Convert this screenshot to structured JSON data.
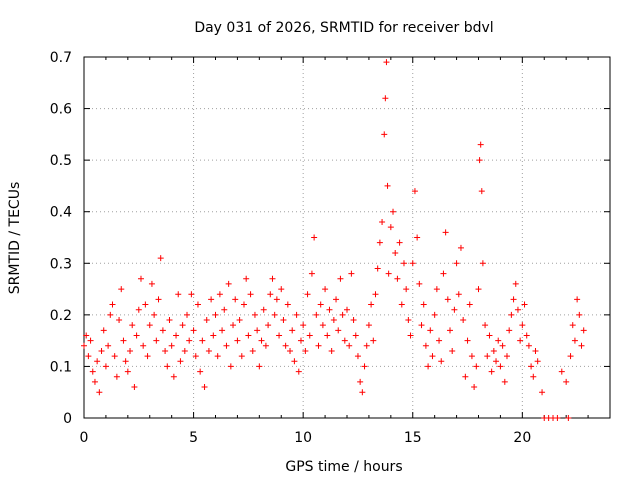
{
  "chart_data": {
    "type": "scatter",
    "title": "Day 031 of 2026, SRMTID for receiver bdvl",
    "xlabel": "GPS time / hours",
    "ylabel": "SRMTID / TECUs",
    "xlim": [
      0,
      24
    ],
    "ylim": [
      0,
      0.7
    ],
    "xticks": [
      0,
      5,
      10,
      15,
      20
    ],
    "xtick_labels": [
      "0",
      "5",
      "10",
      "15",
      "20"
    ],
    "yticks": [
      0,
      0.1,
      0.2,
      0.3,
      0.4,
      0.5,
      0.6,
      0.7
    ],
    "ytick_labels": [
      "0",
      "0.1",
      "0.2",
      "0.3",
      "0.4",
      "0.5",
      "0.6",
      "0.7"
    ],
    "grid": true,
    "marker": "plus",
    "color": "#ff0000",
    "series": [
      {
        "name": "SRMTID",
        "points": [
          [
            0.0,
            0.14
          ],
          [
            0.1,
            0.16
          ],
          [
            0.2,
            0.12
          ],
          [
            0.3,
            0.15
          ],
          [
            0.4,
            0.09
          ],
          [
            0.5,
            0.07
          ],
          [
            0.6,
            0.11
          ],
          [
            0.7,
            0.05
          ],
          [
            0.8,
            0.13
          ],
          [
            0.9,
            0.17
          ],
          [
            1.0,
            0.1
          ],
          [
            1.1,
            0.14
          ],
          [
            1.2,
            0.2
          ],
          [
            1.3,
            0.22
          ],
          [
            1.4,
            0.12
          ],
          [
            1.5,
            0.08
          ],
          [
            1.6,
            0.19
          ],
          [
            1.7,
            0.25
          ],
          [
            1.8,
            0.15
          ],
          [
            1.9,
            0.11
          ],
          [
            2.0,
            0.09
          ],
          [
            2.1,
            0.13
          ],
          [
            2.2,
            0.18
          ],
          [
            2.3,
            0.06
          ],
          [
            2.4,
            0.16
          ],
          [
            2.5,
            0.21
          ],
          [
            2.6,
            0.27
          ],
          [
            2.7,
            0.14
          ],
          [
            2.8,
            0.22
          ],
          [
            2.9,
            0.12
          ],
          [
            3.0,
            0.18
          ],
          [
            3.1,
            0.26
          ],
          [
            3.2,
            0.2
          ],
          [
            3.3,
            0.15
          ],
          [
            3.4,
            0.23
          ],
          [
            3.5,
            0.31
          ],
          [
            3.6,
            0.17
          ],
          [
            3.7,
            0.13
          ],
          [
            3.8,
            0.1
          ],
          [
            3.9,
            0.19
          ],
          [
            4.0,
            0.14
          ],
          [
            4.1,
            0.08
          ],
          [
            4.2,
            0.16
          ],
          [
            4.3,
            0.24
          ],
          [
            4.4,
            0.11
          ],
          [
            4.5,
            0.18
          ],
          [
            4.6,
            0.13
          ],
          [
            4.7,
            0.2
          ],
          [
            4.8,
            0.15
          ],
          [
            4.9,
            0.24
          ],
          [
            5.0,
            0.17
          ],
          [
            5.1,
            0.12
          ],
          [
            5.2,
            0.22
          ],
          [
            5.3,
            0.09
          ],
          [
            5.4,
            0.15
          ],
          [
            5.5,
            0.06
          ],
          [
            5.6,
            0.19
          ],
          [
            5.7,
            0.13
          ],
          [
            5.8,
            0.23
          ],
          [
            5.9,
            0.16
          ],
          [
            6.0,
            0.2
          ],
          [
            6.1,
            0.12
          ],
          [
            6.2,
            0.24
          ],
          [
            6.3,
            0.17
          ],
          [
            6.4,
            0.21
          ],
          [
            6.5,
            0.14
          ],
          [
            6.6,
            0.26
          ],
          [
            6.7,
            0.1
          ],
          [
            6.8,
            0.18
          ],
          [
            6.9,
            0.23
          ],
          [
            7.0,
            0.15
          ],
          [
            7.1,
            0.19
          ],
          [
            7.2,
            0.12
          ],
          [
            7.3,
            0.22
          ],
          [
            7.4,
            0.27
          ],
          [
            7.5,
            0.16
          ],
          [
            7.6,
            0.24
          ],
          [
            7.7,
            0.13
          ],
          [
            7.8,
            0.2
          ],
          [
            7.9,
            0.17
          ],
          [
            8.0,
            0.1
          ],
          [
            8.1,
            0.15
          ],
          [
            8.2,
            0.21
          ],
          [
            8.3,
            0.14
          ],
          [
            8.4,
            0.18
          ],
          [
            8.5,
            0.24
          ],
          [
            8.6,
            0.27
          ],
          [
            8.7,
            0.2
          ],
          [
            8.8,
            0.23
          ],
          [
            8.9,
            0.16
          ],
          [
            9.0,
            0.25
          ],
          [
            9.1,
            0.19
          ],
          [
            9.2,
            0.14
          ],
          [
            9.3,
            0.22
          ],
          [
            9.4,
            0.13
          ],
          [
            9.5,
            0.17
          ],
          [
            9.6,
            0.11
          ],
          [
            9.7,
            0.2
          ],
          [
            9.8,
            0.09
          ],
          [
            9.9,
            0.15
          ],
          [
            10.0,
            0.18
          ],
          [
            10.1,
            0.13
          ],
          [
            10.2,
            0.24
          ],
          [
            10.3,
            0.16
          ],
          [
            10.4,
            0.28
          ],
          [
            10.5,
            0.35
          ],
          [
            10.6,
            0.2
          ],
          [
            10.7,
            0.14
          ],
          [
            10.8,
            0.22
          ],
          [
            10.9,
            0.18
          ],
          [
            11.0,
            0.25
          ],
          [
            11.1,
            0.16
          ],
          [
            11.2,
            0.21
          ],
          [
            11.3,
            0.13
          ],
          [
            11.4,
            0.19
          ],
          [
            11.5,
            0.23
          ],
          [
            11.6,
            0.17
          ],
          [
            11.7,
            0.27
          ],
          [
            11.8,
            0.2
          ],
          [
            11.9,
            0.15
          ],
          [
            12.0,
            0.21
          ],
          [
            12.1,
            0.14
          ],
          [
            12.2,
            0.28
          ],
          [
            12.3,
            0.19
          ],
          [
            12.4,
            0.16
          ],
          [
            12.5,
            0.12
          ],
          [
            12.6,
            0.07
          ],
          [
            12.7,
            0.05
          ],
          [
            12.8,
            0.1
          ],
          [
            12.9,
            0.14
          ],
          [
            13.0,
            0.18
          ],
          [
            13.1,
            0.22
          ],
          [
            13.2,
            0.15
          ],
          [
            13.3,
            0.24
          ],
          [
            13.4,
            0.29
          ],
          [
            13.5,
            0.34
          ],
          [
            13.6,
            0.38
          ],
          [
            13.7,
            0.55
          ],
          [
            13.75,
            0.62
          ],
          [
            13.8,
            0.69
          ],
          [
            13.85,
            0.45
          ],
          [
            13.9,
            0.28
          ],
          [
            14.0,
            0.37
          ],
          [
            14.1,
            0.4
          ],
          [
            14.2,
            0.32
          ],
          [
            14.3,
            0.27
          ],
          [
            14.4,
            0.34
          ],
          [
            14.5,
            0.22
          ],
          [
            14.6,
            0.3
          ],
          [
            14.7,
            0.25
          ],
          [
            14.8,
            0.19
          ],
          [
            14.9,
            0.16
          ],
          [
            15.0,
            0.3
          ],
          [
            15.1,
            0.44
          ],
          [
            15.2,
            0.35
          ],
          [
            15.3,
            0.26
          ],
          [
            15.4,
            0.18
          ],
          [
            15.5,
            0.22
          ],
          [
            15.6,
            0.14
          ],
          [
            15.7,
            0.1
          ],
          [
            15.8,
            0.17
          ],
          [
            15.9,
            0.12
          ],
          [
            16.0,
            0.2
          ],
          [
            16.1,
            0.25
          ],
          [
            16.2,
            0.15
          ],
          [
            16.3,
            0.11
          ],
          [
            16.4,
            0.28
          ],
          [
            16.5,
            0.36
          ],
          [
            16.6,
            0.23
          ],
          [
            16.7,
            0.17
          ],
          [
            16.8,
            0.13
          ],
          [
            16.9,
            0.21
          ],
          [
            17.0,
            0.3
          ],
          [
            17.1,
            0.24
          ],
          [
            17.2,
            0.33
          ],
          [
            17.3,
            0.19
          ],
          [
            17.4,
            0.08
          ],
          [
            17.5,
            0.15
          ],
          [
            17.6,
            0.22
          ],
          [
            17.7,
            0.12
          ],
          [
            17.8,
            0.06
          ],
          [
            17.9,
            0.1
          ],
          [
            18.0,
            0.25
          ],
          [
            18.05,
            0.5
          ],
          [
            18.1,
            0.53
          ],
          [
            18.15,
            0.44
          ],
          [
            18.2,
            0.3
          ],
          [
            18.3,
            0.18
          ],
          [
            18.4,
            0.12
          ],
          [
            18.5,
            0.16
          ],
          [
            18.6,
            0.09
          ],
          [
            18.7,
            0.13
          ],
          [
            18.8,
            0.11
          ],
          [
            18.9,
            0.15
          ],
          [
            19.0,
            0.1
          ],
          [
            19.1,
            0.14
          ],
          [
            19.2,
            0.07
          ],
          [
            19.3,
            0.12
          ],
          [
            19.4,
            0.17
          ],
          [
            19.5,
            0.2
          ],
          [
            19.6,
            0.23
          ],
          [
            19.7,
            0.26
          ],
          [
            19.8,
            0.21
          ],
          [
            19.9,
            0.15
          ],
          [
            20.0,
            0.18
          ],
          [
            20.1,
            0.22
          ],
          [
            20.2,
            0.16
          ],
          [
            20.3,
            0.14
          ],
          [
            20.4,
            0.1
          ],
          [
            20.5,
            0.08
          ],
          [
            20.6,
            0.13
          ],
          [
            20.7,
            0.11
          ],
          [
            20.9,
            0.05
          ],
          [
            21.0,
            0.0
          ],
          [
            21.2,
            0.0
          ],
          [
            21.4,
            0.0
          ],
          [
            21.6,
            0.0
          ],
          [
            21.8,
            0.09
          ],
          [
            22.0,
            0.07
          ],
          [
            22.1,
            0.0
          ],
          [
            22.2,
            0.12
          ],
          [
            22.3,
            0.18
          ],
          [
            22.4,
            0.15
          ],
          [
            22.5,
            0.23
          ],
          [
            22.6,
            0.2
          ],
          [
            22.7,
            0.14
          ],
          [
            22.8,
            0.17
          ]
        ]
      }
    ]
  }
}
